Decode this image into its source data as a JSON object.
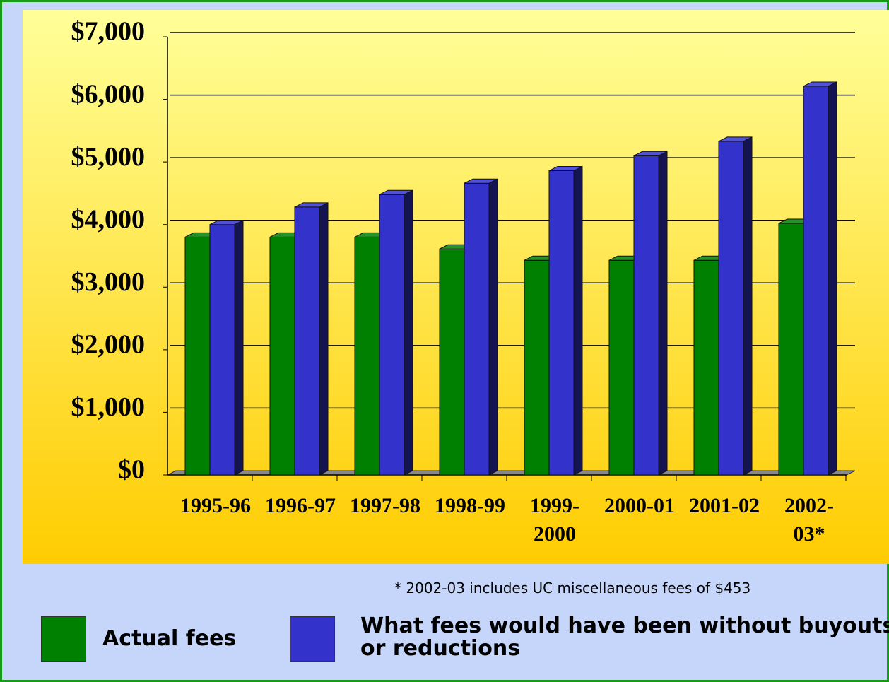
{
  "chart_data": {
    "type": "bar3d",
    "categories": [
      "1995-96",
      "1996-97",
      "1997-98",
      "1998-99",
      "1999-2000",
      "2000-01",
      "2001-02",
      "2002-03*"
    ],
    "series": [
      {
        "name": "Actual fees",
        "color": "#008000",
        "values": [
          3800,
          3800,
          3800,
          3610,
          3430,
          3430,
          3430,
          4020
        ]
      },
      {
        "name": "What fees would have been without buyouts or reductions",
        "color": "#3333cc",
        "values": [
          4000,
          4280,
          4480,
          4660,
          4860,
          5100,
          5330,
          6210
        ]
      }
    ],
    "ylim": [
      0,
      7000
    ],
    "yticks": [
      {
        "value": 0,
        "label": "$0"
      },
      {
        "value": 1000,
        "label": "$1,000"
      },
      {
        "value": 2000,
        "label": "$2,000"
      },
      {
        "value": 3000,
        "label": "$3,000"
      },
      {
        "value": 4000,
        "label": "$4,000"
      },
      {
        "value": 5000,
        "label": "$5,000"
      },
      {
        "value": 6000,
        "label": "$6,000"
      },
      {
        "value": 7000,
        "label": "$7,000"
      }
    ],
    "grid": true,
    "annotation": "* 2002-03 includes UC miscellaneous fees of $453"
  }
}
